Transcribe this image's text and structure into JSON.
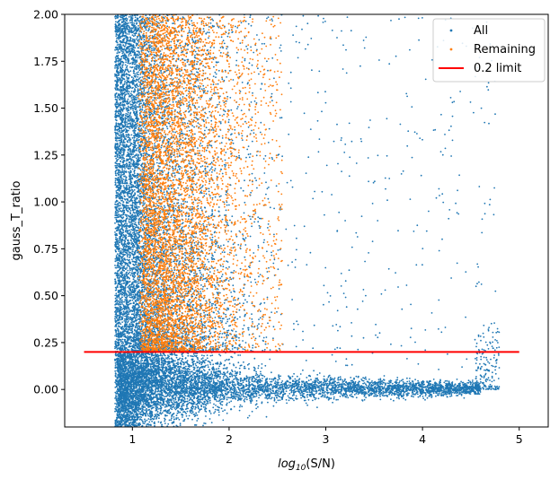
{
  "chart_data": {
    "type": "scatter",
    "xlabel_prefix": "log",
    "xlabel_sub": "10",
    "xlabel_suffix": "(S/N)",
    "ylabel": "gauss_T_ratio",
    "xlim": [
      0.3,
      5.3
    ],
    "ylim": [
      -0.2,
      2.0
    ],
    "x_ticks": [
      1,
      2,
      3,
      4,
      5
    ],
    "x_tick_labels": [
      "1",
      "2",
      "3",
      "4",
      "5"
    ],
    "y_ticks": [
      0.0,
      0.25,
      0.5,
      0.75,
      1.0,
      1.25,
      1.5,
      1.75,
      2.0
    ],
    "y_tick_labels": [
      "0.00",
      "0.25",
      "0.50",
      "0.75",
      "1.00",
      "1.25",
      "1.50",
      "1.75",
      "2.00"
    ],
    "grid": false,
    "legend_position": "top-right",
    "series": [
      {
        "name": "All",
        "kind": "points",
        "color": "#1f77b4",
        "description_x_range": [
          0.8,
          4.85
        ],
        "cluster_main": {
          "x": [
            0.8,
            2.6
          ],
          "y": [
            -0.2,
            2.0
          ]
        },
        "tail_near_zero": {
          "x": [
            1.0,
            4.6
          ],
          "y": [
            -0.05,
            0.05
          ]
        }
      },
      {
        "name": "Remaining",
        "kind": "points",
        "color": "#ff7f0e",
        "x_range": [
          1.0,
          2.55
        ],
        "y_range": [
          0.2,
          2.0
        ]
      },
      {
        "name": "0.2 limit",
        "kind": "line",
        "color": "#ff0000",
        "x": [
          0.5,
          5.0
        ],
        "y": [
          0.2,
          0.2
        ]
      }
    ]
  }
}
